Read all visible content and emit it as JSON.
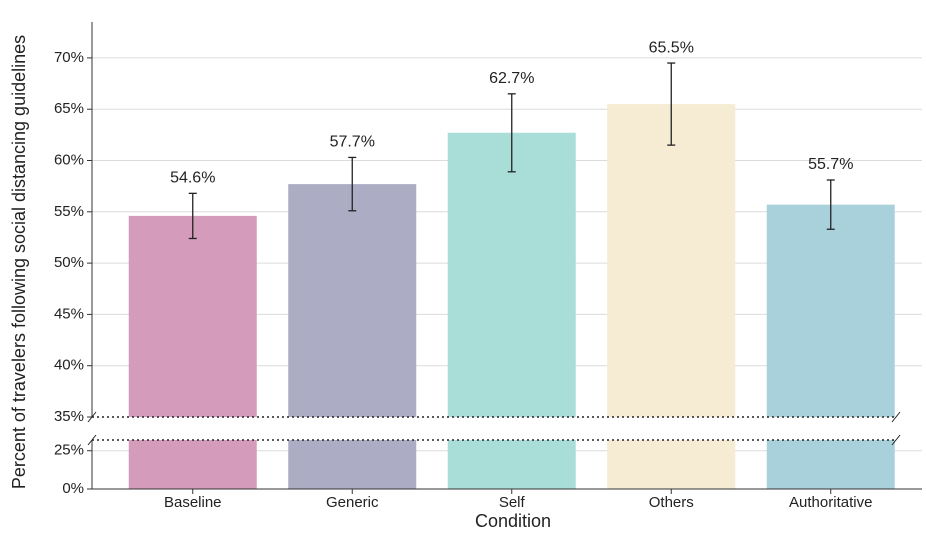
{
  "chart_data": {
    "type": "bar",
    "xlabel": "Condition",
    "ylabel": "Percent of travelers following social distancing guidelines",
    "categories": [
      "Baseline",
      "Generic",
      "Self",
      "Others",
      "Authoritative"
    ],
    "values": [
      54.6,
      57.7,
      62.7,
      65.5,
      55.7
    ],
    "value_labels": [
      "54.6%",
      "57.7%",
      "62.7%",
      "65.5%",
      "55.7%"
    ],
    "errors": [
      2.2,
      2.6,
      3.8,
      4.0,
      2.4
    ],
    "colors": [
      "#d49bbb",
      "#acacc4",
      "#a8ddd8",
      "#f5ecd3",
      "#a9d1dc"
    ],
    "grid": true,
    "y_segments": [
      {
        "ylim": [
          0,
          32
        ],
        "yticks": [
          {
            "value": 0,
            "label": "0%"
          },
          {
            "value": 25,
            "label": "25%"
          }
        ]
      },
      {
        "ylim": [
          35,
          73.5
        ],
        "yticks": [
          {
            "value": 35,
            "label": "35%"
          },
          {
            "value": 40,
            "label": "40%"
          },
          {
            "value": 45,
            "label": "45%"
          },
          {
            "value": 50,
            "label": "50%"
          },
          {
            "value": 55,
            "label": "55%"
          },
          {
            "value": 60,
            "label": "60%"
          },
          {
            "value": 65,
            "label": "65%"
          },
          {
            "value": 70,
            "label": "70%"
          }
        ]
      }
    ]
  }
}
